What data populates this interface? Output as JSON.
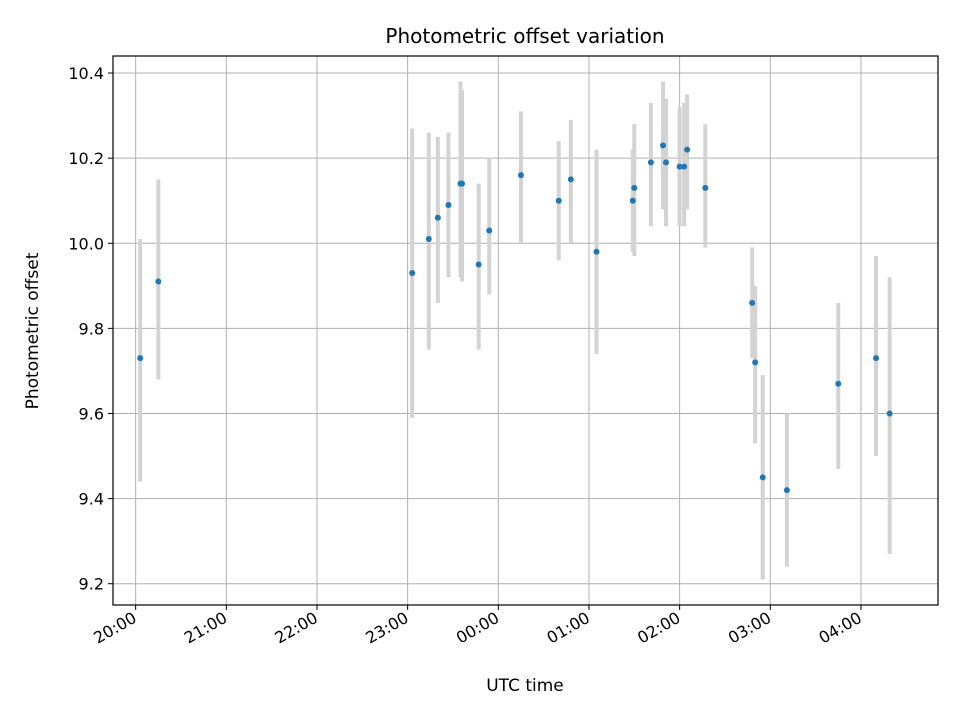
{
  "chart_data": {
    "type": "scatter",
    "title": "Photometric offset variation",
    "xlabel": "UTC time",
    "ylabel": "Photometric offset",
    "x_ticks": [
      "20:00",
      "21:00",
      "22:00",
      "23:00",
      "00:00",
      "01:00",
      "02:00",
      "03:00",
      "04:00"
    ],
    "y_ticks": [
      "9.2",
      "9.4",
      "9.6",
      "9.8",
      "10.0",
      "10.2",
      "10.4"
    ],
    "xlim": [
      "19:45",
      "04:51"
    ],
    "ylim": [
      9.15,
      10.44
    ],
    "grid": true,
    "colors": {
      "point": "#1f77b4",
      "errorbar": "#d3d3d3",
      "grid": "#b0b0b0"
    },
    "points": [
      {
        "x": "20:03",
        "y": 9.73,
        "yerr": [
          9.44,
          10.01
        ]
      },
      {
        "x": "20:15",
        "y": 9.91,
        "yerr": [
          9.68,
          10.15
        ]
      },
      {
        "x": "23:03",
        "y": 9.93,
        "yerr": [
          9.59,
          10.27
        ]
      },
      {
        "x": "23:14",
        "y": 10.01,
        "yerr": [
          9.75,
          10.26
        ]
      },
      {
        "x": "23:20",
        "y": 10.06,
        "yerr": [
          9.86,
          10.25
        ]
      },
      {
        "x": "23:27",
        "y": 10.09,
        "yerr": [
          9.92,
          10.26
        ]
      },
      {
        "x": "23:35",
        "y": 10.14,
        "yerr": [
          9.92,
          10.38
        ]
      },
      {
        "x": "23:36",
        "y": 10.14,
        "yerr": [
          9.91,
          10.36
        ]
      },
      {
        "x": "23:47",
        "y": 9.95,
        "yerr": [
          9.75,
          10.14
        ]
      },
      {
        "x": "23:54",
        "y": 10.03,
        "yerr": [
          9.88,
          10.2
        ]
      },
      {
        "x": "00:15",
        "y": 10.16,
        "yerr": [
          10.0,
          10.31
        ]
      },
      {
        "x": "00:40",
        "y": 10.1,
        "yerr": [
          9.96,
          10.24
        ]
      },
      {
        "x": "00:48",
        "y": 10.15,
        "yerr": [
          10.0,
          10.29
        ]
      },
      {
        "x": "01:05",
        "y": 9.98,
        "yerr": [
          9.74,
          10.22
        ]
      },
      {
        "x": "01:29",
        "y": 10.1,
        "yerr": [
          9.98,
          10.22
        ]
      },
      {
        "x": "01:30",
        "y": 10.13,
        "yerr": [
          9.97,
          10.28
        ]
      },
      {
        "x": "01:41",
        "y": 10.19,
        "yerr": [
          10.04,
          10.33
        ]
      },
      {
        "x": "01:49",
        "y": 10.23,
        "yerr": [
          10.08,
          10.38
        ]
      },
      {
        "x": "01:51",
        "y": 10.19,
        "yerr": [
          10.04,
          10.34
        ]
      },
      {
        "x": "02:00",
        "y": 10.18,
        "yerr": [
          10.04,
          10.32
        ]
      },
      {
        "x": "02:03",
        "y": 10.18,
        "yerr": [
          10.04,
          10.33
        ]
      },
      {
        "x": "02:05",
        "y": 10.22,
        "yerr": [
          10.08,
          10.35
        ]
      },
      {
        "x": "02:17",
        "y": 10.13,
        "yerr": [
          9.99,
          10.28
        ]
      },
      {
        "x": "02:48",
        "y": 9.86,
        "yerr": [
          9.73,
          9.99
        ]
      },
      {
        "x": "02:50",
        "y": 9.72,
        "yerr": [
          9.53,
          9.9
        ]
      },
      {
        "x": "02:55",
        "y": 9.45,
        "yerr": [
          9.21,
          9.69
        ]
      },
      {
        "x": "03:11",
        "y": 9.42,
        "yerr": [
          9.24,
          9.6
        ]
      },
      {
        "x": "03:45",
        "y": 9.67,
        "yerr": [
          9.47,
          9.86
        ]
      },
      {
        "x": "04:10",
        "y": 9.73,
        "yerr": [
          9.5,
          9.97
        ]
      },
      {
        "x": "04:19",
        "y": 9.6,
        "yerr": [
          9.27,
          9.92
        ]
      }
    ]
  }
}
